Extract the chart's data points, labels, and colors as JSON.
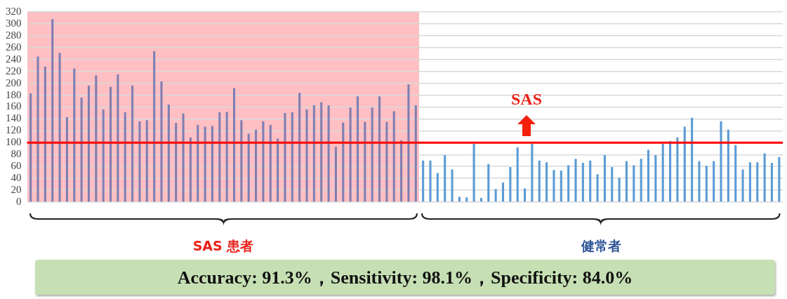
{
  "chart_data": {
    "type": "bar",
    "categories": [
      null,
      null,
      null,
      null,
      null,
      null,
      null,
      null,
      null,
      null,
      null,
      null,
      null,
      null,
      null,
      null,
      null,
      null,
      null,
      null,
      null,
      null,
      null,
      null,
      null,
      null,
      null,
      null,
      null,
      null,
      null,
      null,
      null,
      null,
      null,
      null,
      null,
      null,
      null,
      null,
      null,
      null,
      null,
      null,
      null,
      null,
      null,
      null,
      null,
      null,
      null,
      null,
      null,
      null,
      null,
      null,
      null,
      null,
      null,
      null,
      null,
      null,
      null,
      null,
      null,
      null,
      null,
      null,
      null,
      null,
      null,
      null,
      null,
      null,
      null,
      null,
      null,
      null,
      null,
      null,
      null,
      null,
      null,
      null,
      null,
      null,
      null,
      null,
      null,
      null,
      null,
      null,
      null,
      null,
      null,
      null,
      null,
      null,
      null,
      null,
      null,
      null,
      null,
      null
    ],
    "series": [
      {
        "name": "SAS 患者",
        "color": "#7f7fb2",
        "values": [
          183,
          245,
          228,
          308,
          251,
          143,
          225,
          176,
          196,
          213,
          156,
          194,
          215,
          151,
          196,
          136,
          138,
          254,
          203,
          164,
          133,
          149,
          109,
          130,
          127,
          128,
          151,
          152,
          192,
          138,
          115,
          122,
          136,
          130,
          107,
          150,
          151,
          184,
          156,
          163,
          168,
          163,
          93,
          134,
          159,
          178,
          135,
          159,
          178,
          135,
          153,
          104,
          198,
          163,
          null,
          null,
          null,
          null,
          null,
          null,
          null,
          null,
          null,
          null,
          null,
          null,
          null,
          null,
          null,
          null,
          null,
          null,
          null,
          null,
          null,
          null,
          null,
          null,
          null,
          null,
          null,
          null,
          null,
          null,
          null,
          null,
          null,
          null,
          null,
          null,
          null,
          null,
          null,
          null,
          null,
          null,
          null,
          null,
          null,
          null,
          null,
          null,
          null,
          null
        ]
      },
      {
        "name": "健常者",
        "color": "#5b9bd5",
        "values": [
          null,
          null,
          null,
          null,
          null,
          null,
          null,
          null,
          null,
          null,
          null,
          null,
          null,
          null,
          null,
          null,
          null,
          null,
          null,
          null,
          null,
          null,
          null,
          null,
          null,
          null,
          null,
          null,
          null,
          null,
          null,
          null,
          null,
          null,
          null,
          null,
          null,
          null,
          null,
          null,
          null,
          null,
          null,
          null,
          null,
          null,
          null,
          null,
          null,
          null,
          null,
          null,
          null,
          null,
          70,
          70,
          49,
          79,
          55,
          9,
          8,
          98,
          7,
          64,
          22,
          33,
          59,
          92,
          23,
          98,
          70,
          67,
          54,
          53,
          62,
          73,
          66,
          70,
          47,
          79,
          59,
          41,
          69,
          62,
          73,
          88,
          79,
          98,
          103,
          109,
          127,
          142,
          69,
          61,
          69,
          136,
          122,
          96,
          55,
          67,
          67,
          82,
          66,
          76
        ]
      }
    ],
    "ylim": [
      0,
      320
    ],
    "yticks": [
      0,
      20,
      40,
      60,
      80,
      100,
      120,
      140,
      160,
      180,
      200,
      220,
      240,
      260,
      280,
      300,
      320
    ],
    "grid": "y",
    "legend": false,
    "stacked": true,
    "ref_lines": [
      {
        "axis": "y",
        "value": 100,
        "color": "#ff0000"
      }
    ],
    "annotations": [
      "SAS",
      "Accuracy: 91.3%，Sensitivity: 98.1%，Specificity: 84.0%"
    ]
  }
}
